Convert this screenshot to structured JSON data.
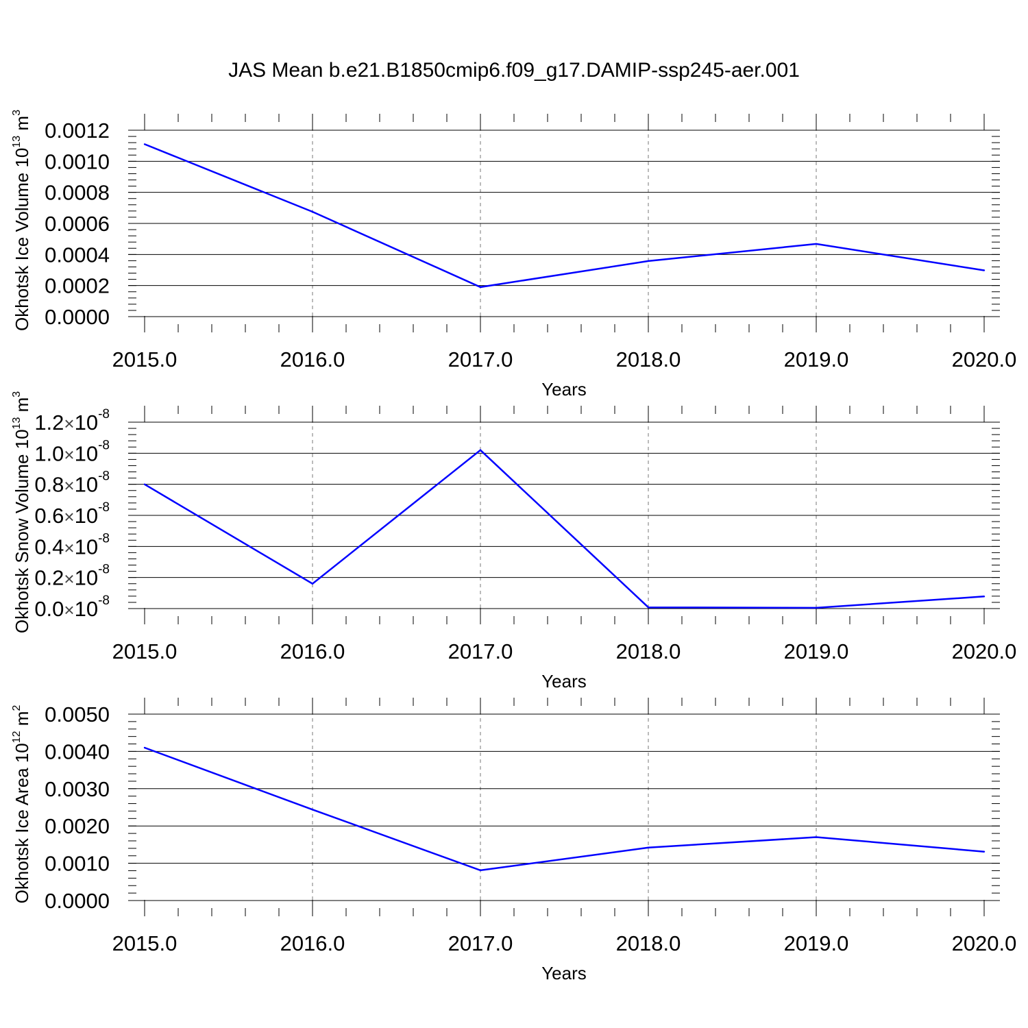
{
  "title": "JAS Mean b.e21.B1850cmip6.f09_g17.DAMIP-ssp245-aer.001",
  "line_color": "#0000ff",
  "chart_data": [
    {
      "type": "line",
      "xlabel": "Years",
      "ylabel": {
        "text": "Okhotsk Ice Volume 10",
        "sup": "13",
        "unit": " m",
        "unit_sup": "3"
      },
      "x": [
        2015,
        2016,
        2017,
        2018,
        2019,
        2020
      ],
      "x_ticks": [
        "2015.0",
        "2016.0",
        "2017.0",
        "2018.0",
        "2019.0",
        "2020.0"
      ],
      "xlim": [
        2015,
        2020.1
      ],
      "ylim": [
        0,
        0.0012
      ],
      "y_ticks": [
        {
          "value": 0.0,
          "label": "0.0000"
        },
        {
          "value": 0.0002,
          "label": "0.0002"
        },
        {
          "value": 0.0004,
          "label": "0.0004"
        },
        {
          "value": 0.0006,
          "label": "0.0006"
        },
        {
          "value": 0.0008,
          "label": "0.0008"
        },
        {
          "value": 0.001,
          "label": "0.0010"
        },
        {
          "value": 0.0012,
          "label": "0.0012"
        }
      ],
      "series": [
        {
          "values": [
            0.00111,
            0.000675,
            0.00019,
            0.000358,
            0.000468,
            0.000298
          ]
        }
      ]
    },
    {
      "type": "line",
      "xlabel": "Years",
      "ylabel": {
        "text": "Okhotsk Snow Volume 10",
        "sup": "13",
        "unit": " m",
        "unit_sup": "3"
      },
      "x": [
        2015,
        2016,
        2017,
        2018,
        2019,
        2020
      ],
      "x_ticks": [
        "2015.0",
        "2016.0",
        "2017.0",
        "2018.0",
        "2019.0",
        "2020.0"
      ],
      "xlim": [
        2015,
        2020.1
      ],
      "ylim": [
        0,
        1.2
      ],
      "y_ticks": [
        {
          "value": 0.0,
          "label": "0.0",
          "times": "×",
          "exp_base": "10",
          "exp": "-8"
        },
        {
          "value": 0.2,
          "label": "0.2",
          "times": "×",
          "exp_base": "10",
          "exp": "-8"
        },
        {
          "value": 0.4,
          "label": "0.4",
          "times": "×",
          "exp_base": "10",
          "exp": "-8"
        },
        {
          "value": 0.6,
          "label": "0.6",
          "times": "×",
          "exp_base": "10",
          "exp": "-8"
        },
        {
          "value": 0.8,
          "label": "0.8",
          "times": "×",
          "exp_base": "10",
          "exp": "-8"
        },
        {
          "value": 1.0,
          "label": "1.0",
          "times": "×",
          "exp_base": "10",
          "exp": "-8"
        },
        {
          "value": 1.2,
          "label": "1.2",
          "times": "×",
          "exp_base": "10",
          "exp": "-8"
        }
      ],
      "series": [
        {
          "values": [
            0.8,
            0.16,
            1.02,
            0.008,
            0.005,
            0.078
          ]
        }
      ]
    },
    {
      "type": "line",
      "xlabel": "Years",
      "ylabel": {
        "text": "Okhotsk Ice Area 10",
        "sup": "12",
        "unit": " m",
        "unit_sup": "2"
      },
      "x": [
        2015,
        2016,
        2017,
        2018,
        2019,
        2020
      ],
      "x_ticks": [
        "2015.0",
        "2016.0",
        "2017.0",
        "2018.0",
        "2019.0",
        "2020.0"
      ],
      "xlim": [
        2015,
        2020.1
      ],
      "ylim": [
        0,
        0.005
      ],
      "y_ticks": [
        {
          "value": 0.0,
          "label": "0.0000"
        },
        {
          "value": 0.001,
          "label": "0.0010"
        },
        {
          "value": 0.002,
          "label": "0.0020"
        },
        {
          "value": 0.003,
          "label": "0.0030"
        },
        {
          "value": 0.004,
          "label": "0.0040"
        },
        {
          "value": 0.005,
          "label": "0.0050"
        }
      ],
      "series": [
        {
          "values": [
            0.0041,
            0.00244,
            0.00081,
            0.00142,
            0.0017,
            0.00131
          ]
        }
      ]
    }
  ]
}
